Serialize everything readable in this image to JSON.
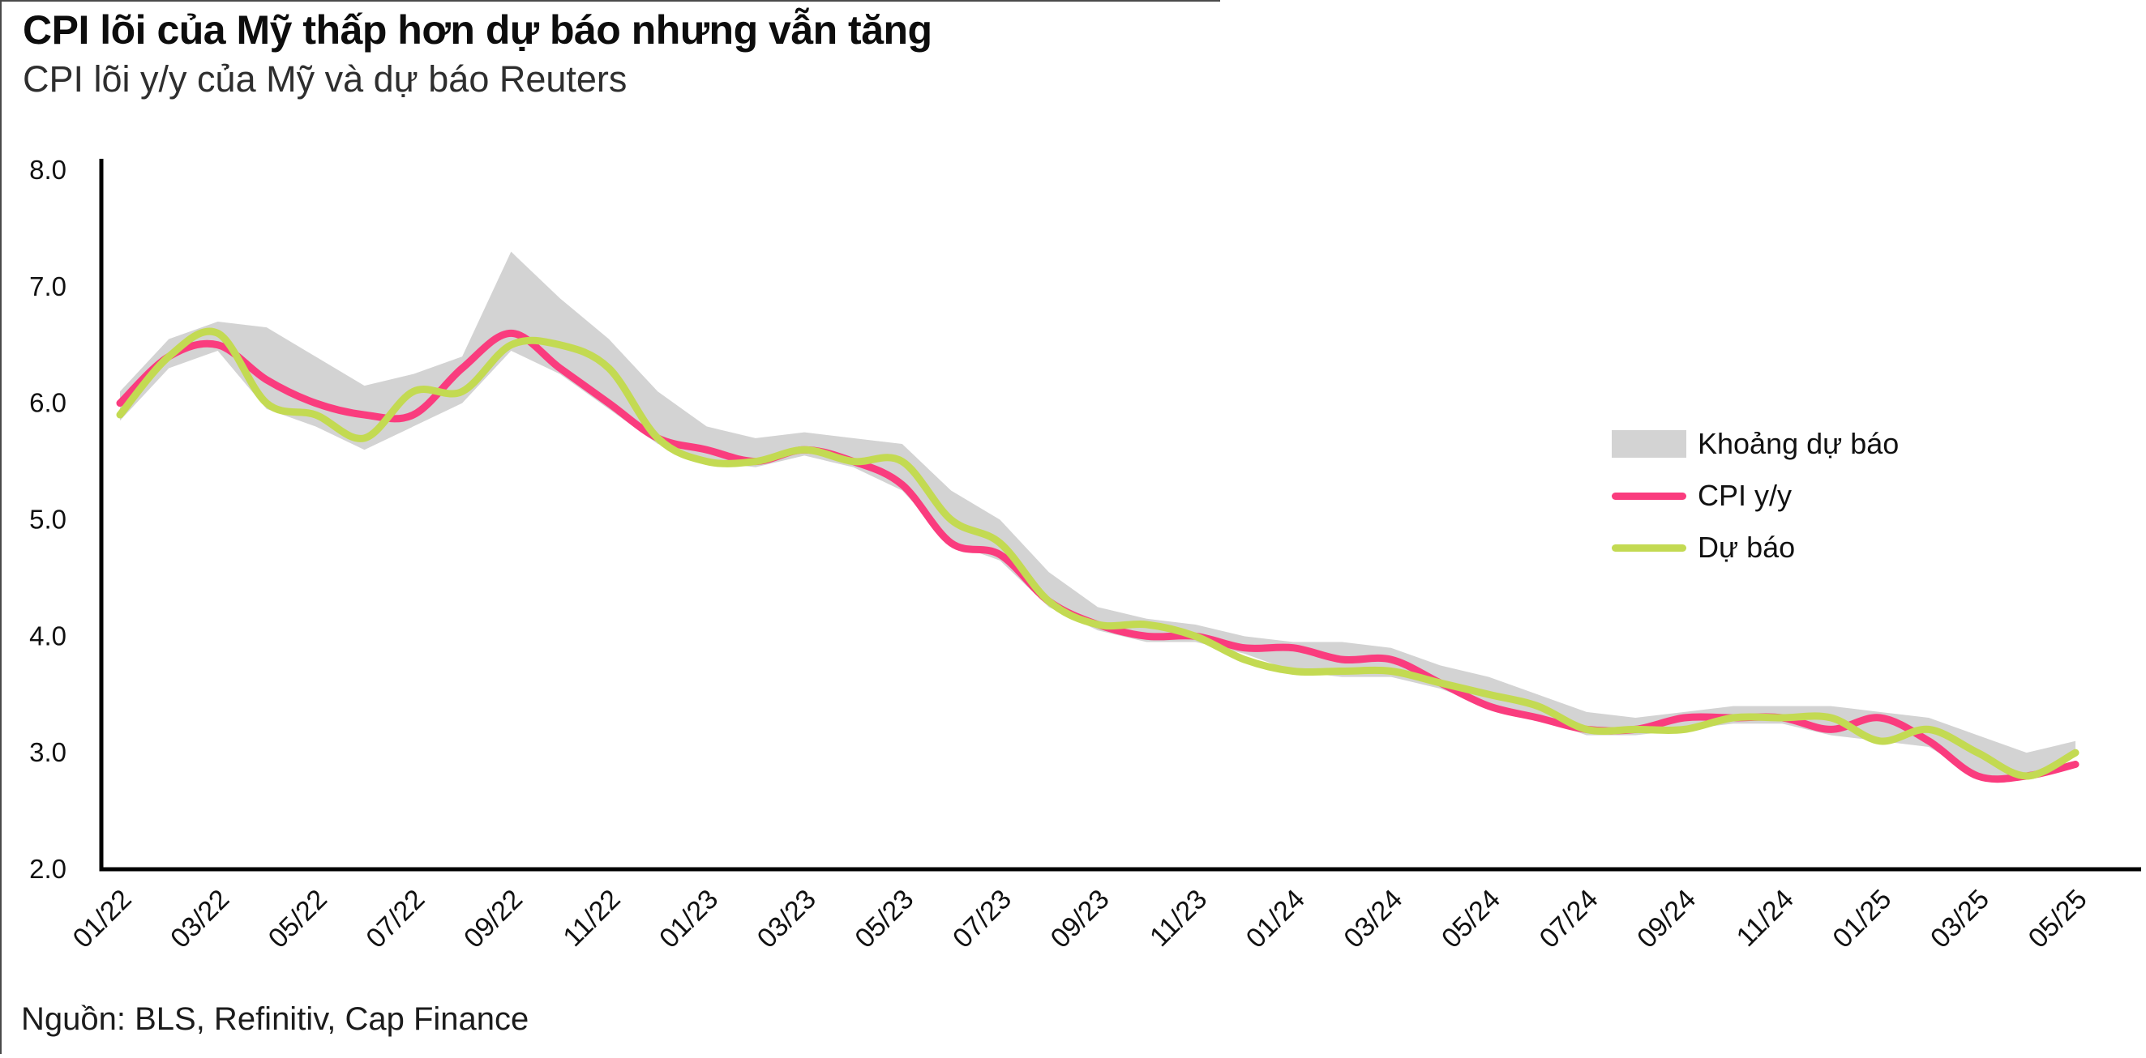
{
  "header": {
    "title": "CPI lõi của Mỹ thấp hơn dự báo nhưng vẫn tăng",
    "subtitle": "CPI lõi y/y của Mỹ và dự báo Reuters"
  },
  "footer": {
    "source": "Nguồn: BLS, Refinitiv, Cap Finance"
  },
  "legend": {
    "items": [
      {
        "label": "Khoảng dự báo",
        "type": "band",
        "color": "#D3D3D3"
      },
      {
        "label": "CPI y/y",
        "type": "line",
        "color": "#FA3C7E"
      },
      {
        "label": "Dự báo",
        "type": "line",
        "color": "#C3DA52"
      }
    ]
  },
  "colors": {
    "cpi_line": "#FA3C7E",
    "forecast_line": "#C3DA52",
    "band_fill": "#D3D3D3",
    "axis": "#000000"
  },
  "chart_data": {
    "type": "line",
    "title": "CPI lõi của Mỹ thấp hơn dự báo nhưng vẫn tăng",
    "subtitle": "CPI lõi y/y của Mỹ và dự báo Reuters",
    "xlabel": "",
    "ylabel": "",
    "ylim": [
      2.0,
      8.0
    ],
    "yticks": [
      2.0,
      3.0,
      4.0,
      5.0,
      6.0,
      7.0,
      8.0
    ],
    "grid": false,
    "legend_position": "right-middle",
    "x": [
      "01/22",
      "02/22",
      "03/22",
      "04/22",
      "05/22",
      "06/22",
      "07/22",
      "08/22",
      "09/22",
      "10/22",
      "11/22",
      "12/22",
      "01/23",
      "02/23",
      "03/23",
      "04/23",
      "05/23",
      "06/23",
      "07/23",
      "08/23",
      "09/23",
      "10/23",
      "11/23",
      "12/23",
      "01/24",
      "02/24",
      "03/24",
      "04/24",
      "05/24",
      "06/24",
      "07/24",
      "08/24",
      "09/24",
      "10/24",
      "11/24",
      "12/24",
      "01/25",
      "02/25",
      "03/25",
      "04/25",
      "05/25"
    ],
    "x_tick_labels": [
      "01/22",
      "03/22",
      "05/22",
      "07/22",
      "09/22",
      "11/22",
      "01/23",
      "03/23",
      "05/23",
      "07/23",
      "09/23",
      "11/23",
      "01/24",
      "03/24",
      "05/24",
      "07/24",
      "09/24",
      "11/24",
      "01/25",
      "03/25",
      "05/25"
    ],
    "series": [
      {
        "name": "CPI y/y",
        "color": "#FA3C7E",
        "values": [
          6.0,
          6.4,
          6.5,
          6.2,
          6.0,
          5.9,
          5.9,
          6.3,
          6.6,
          6.3,
          6.0,
          5.7,
          5.6,
          5.5,
          5.6,
          5.5,
          5.3,
          4.8,
          4.7,
          4.3,
          4.1,
          4.0,
          4.0,
          3.9,
          3.9,
          3.8,
          3.8,
          3.6,
          3.4,
          3.3,
          3.2,
          3.2,
          3.3,
          3.3,
          3.3,
          3.2,
          3.3,
          3.1,
          2.8,
          2.8,
          2.9
        ]
      },
      {
        "name": "Dự báo",
        "color": "#C3DA52",
        "values": [
          5.9,
          6.4,
          6.6,
          6.0,
          5.9,
          5.7,
          6.1,
          6.1,
          6.5,
          6.5,
          6.3,
          5.7,
          5.5,
          5.5,
          5.6,
          5.5,
          5.5,
          5.0,
          4.8,
          4.3,
          4.1,
          4.1,
          4.0,
          3.8,
          3.7,
          3.7,
          3.7,
          3.6,
          3.5,
          3.4,
          3.2,
          3.2,
          3.2,
          3.3,
          3.3,
          3.3,
          3.1,
          3.2,
          3.0,
          2.8,
          3.0
        ]
      }
    ],
    "band": {
      "name": "Khoảng dự báo",
      "color": "#D3D3D3",
      "high": [
        6.1,
        6.55,
        6.7,
        6.65,
        6.4,
        6.15,
        6.25,
        6.4,
        7.3,
        6.9,
        6.55,
        6.1,
        5.8,
        5.7,
        5.75,
        5.7,
        5.65,
        5.25,
        5.0,
        4.55,
        4.25,
        4.15,
        4.1,
        4.0,
        3.95,
        3.95,
        3.9,
        3.75,
        3.65,
        3.5,
        3.35,
        3.3,
        3.35,
        3.4,
        3.4,
        3.4,
        3.35,
        3.3,
        3.15,
        3.0,
        3.1
      ],
      "low": [
        5.85,
        6.3,
        6.45,
        5.95,
        5.8,
        5.6,
        5.8,
        6.0,
        6.45,
        6.25,
        5.95,
        5.65,
        5.5,
        5.45,
        5.55,
        5.45,
        5.25,
        4.8,
        4.65,
        4.25,
        4.05,
        3.95,
        3.95,
        3.85,
        3.7,
        3.65,
        3.65,
        3.55,
        3.4,
        3.3,
        3.15,
        3.15,
        3.2,
        3.25,
        3.25,
        3.15,
        3.1,
        3.05,
        2.8,
        2.78,
        3.0
      ]
    }
  }
}
